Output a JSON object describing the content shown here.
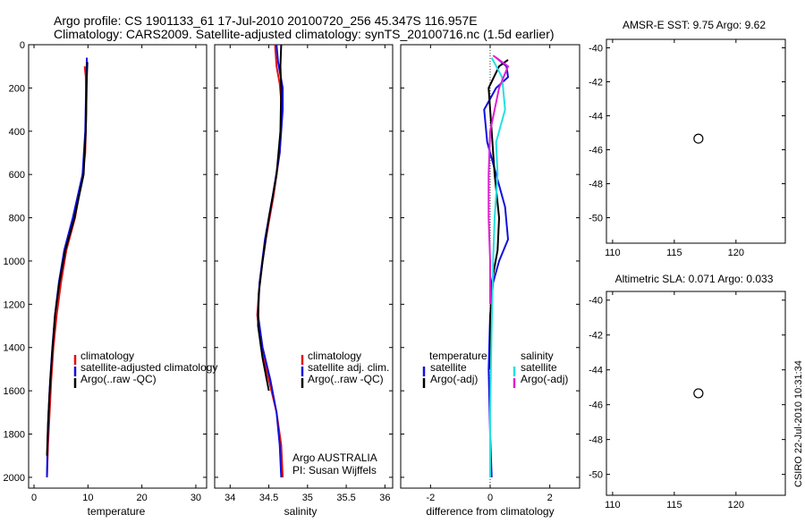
{
  "figure": {
    "title_line1": "Argo profile: CS 1901133_61 17-Jul-2010 20100720_256 45.347S 116.957E",
    "title_line2": "Climatology: CARS2009. Satellite-adjusted climatology: synTS_20100716.nc (1.5d earlier)",
    "footer_org": "Argo AUSTRALIA",
    "footer_pi": "PI: Susan Wijffels",
    "timestamp": "CSIRO 22-Jul-2010 10:31:34"
  },
  "colors": {
    "climatology": "#e01010",
    "satellite": "#1010dd",
    "argo": "#000000",
    "salinity_satellite": "#22e0e0",
    "salinity_argo": "#e020d0"
  },
  "chart_data": [
    {
      "type": "line",
      "name": "temperature",
      "xlabel": "temperature",
      "xlim": [
        -1,
        32
      ],
      "ylim": [
        2050,
        0
      ],
      "xticks": [
        0,
        10,
        20,
        30
      ],
      "yticks": [
        0,
        200,
        400,
        600,
        800,
        1000,
        1200,
        1400,
        1600,
        1800,
        2000
      ],
      "legend": [
        "climatology",
        "satellite-adjusted climatology",
        "Argo(..raw -QC)"
      ],
      "series": [
        {
          "name": "climatology",
          "color": "#e01010",
          "x": [
            9.4,
            9.6,
            9.7,
            9.5,
            9.0,
            7.6,
            6.0,
            5.0,
            4.2,
            3.6,
            3.2,
            2.9,
            2.6,
            2.4
          ],
          "y": [
            100,
            150,
            300,
            500,
            600,
            800,
            950,
            1100,
            1250,
            1400,
            1550,
            1700,
            1850,
            2000
          ]
        },
        {
          "name": "satellite-adjusted climatology",
          "color": "#1010dd",
          "x": [
            9.8,
            9.7,
            9.5,
            9.0,
            7.2,
            5.6,
            4.6,
            3.9,
            3.4,
            3.0,
            2.7,
            2.5,
            2.4
          ],
          "y": [
            60,
            150,
            400,
            600,
            800,
            950,
            1100,
            1250,
            1400,
            1550,
            1700,
            1850,
            2000
          ]
        },
        {
          "name": "Argo(..raw -QC)",
          "color": "#000000",
          "x": [
            9.9,
            9.8,
            9.6,
            9.2,
            7.5,
            5.8,
            4.7,
            3.9,
            3.3,
            2.9,
            2.6,
            2.4
          ],
          "y": [
            80,
            150,
            400,
            600,
            800,
            950,
            1100,
            1250,
            1450,
            1600,
            1750,
            1900
          ]
        }
      ]
    },
    {
      "type": "line",
      "name": "salinity",
      "xlabel": "salinity",
      "xlim": [
        33.8,
        36.1
      ],
      "ylim": [
        2050,
        0
      ],
      "xticks": [
        34,
        34.5,
        35,
        35.5,
        36
      ],
      "xtick_labels": [
        "34",
        "34.5",
        "35",
        "35.5",
        "36"
      ],
      "yticks": [
        0,
        200,
        400,
        600,
        800,
        1000,
        1200,
        1400,
        1600,
        1800,
        2000
      ],
      "legend": [
        "climatology",
        "satellite adj. clim.",
        "Argo(..raw -QC)"
      ],
      "series": [
        {
          "name": "climatology",
          "color": "#e01010",
          "x": [
            34.58,
            34.6,
            34.64,
            34.67,
            34.64,
            34.56,
            34.46,
            34.38,
            34.35,
            34.4,
            34.5,
            34.6,
            34.66,
            34.68
          ],
          "y": [
            0,
            100,
            180,
            300,
            500,
            700,
            900,
            1100,
            1250,
            1400,
            1550,
            1700,
            1850,
            2000
          ]
        },
        {
          "name": "satellite adj. clim.",
          "color": "#1010dd",
          "x": [
            34.6,
            34.62,
            34.68,
            34.68,
            34.64,
            34.55,
            34.45,
            34.38,
            34.36,
            34.42,
            34.52,
            34.6,
            34.64,
            34.66
          ],
          "y": [
            0,
            80,
            200,
            300,
            500,
            700,
            900,
            1100,
            1250,
            1400,
            1550,
            1700,
            1850,
            2000
          ]
        },
        {
          "name": "Argo(..raw -QC)",
          "color": "#000000",
          "x": [
            34.66,
            34.65,
            34.66,
            34.65,
            34.6,
            34.5,
            34.42,
            34.37,
            34.36,
            34.42,
            34.5
          ],
          "y": [
            0,
            100,
            200,
            400,
            600,
            800,
            1000,
            1150,
            1300,
            1450,
            1600
          ]
        }
      ]
    },
    {
      "type": "line",
      "name": "difference",
      "xlabel": "difference from climatology",
      "xlim": [
        -3,
        3
      ],
      "ylim": [
        2050,
        0
      ],
      "xticks": [
        -2,
        0,
        2
      ],
      "yticks": [
        0,
        200,
        400,
        600,
        800,
        1000,
        1200,
        1400,
        1600,
        1800,
        2000
      ],
      "legend_left": [
        "temperature",
        "satellite",
        "Argo(-adj)"
      ],
      "legend_right": [
        "salinity",
        "satellite",
        "Argo(-adj)"
      ],
      "series": [
        {
          "name": "temperature satellite",
          "color": "#1010dd",
          "x": [
            0.2,
            0.55,
            0.6,
            0.2,
            -0.2,
            -0.1,
            0.2,
            0.5,
            0.6,
            0.3,
            0.1,
            0.0,
            -0.05,
            0.0,
            0.05
          ],
          "y": [
            60,
            100,
            150,
            200,
            300,
            450,
            600,
            750,
            900,
            1000,
            1100,
            1250,
            1500,
            1800,
            2000
          ]
        },
        {
          "name": "temperature Argo(-adj)",
          "color": "#000000",
          "x": [
            0.6,
            0.3,
            -0.05,
            0.05,
            0.15,
            0.3,
            0.25,
            0.05,
            0.0,
            0.0
          ],
          "y": [
            70,
            100,
            200,
            400,
            600,
            800,
            950,
            1100,
            1300,
            1500
          ]
        },
        {
          "name": "salinity satellite",
          "color": "#22e0e0",
          "x": [
            0.05,
            0.4,
            0.5,
            0.2,
            0.25,
            0.15,
            0.1,
            0.05,
            0.0,
            0.0
          ],
          "y": [
            60,
            150,
            300,
            450,
            600,
            800,
            1000,
            1300,
            1700,
            2000
          ]
        },
        {
          "name": "salinity Argo(-adj)",
          "color": "#e020d0",
          "x": [
            0.1,
            0.6,
            0.3,
            0.0,
            -0.05,
            -0.05,
            0.0,
            0.0
          ],
          "y": [
            50,
            100,
            200,
            400,
            600,
            800,
            1000,
            1200
          ]
        }
      ]
    },
    {
      "type": "heatmap",
      "name": "AMSR-E SST",
      "title": "AMSR-E SST: 9.75 Argo: 9.62",
      "xlim": [
        109.5,
        124
      ],
      "ylim": [
        -51.5,
        -39.5
      ],
      "xticks": [
        110,
        115,
        120
      ],
      "yticks": [
        -40,
        -42,
        -44,
        -46,
        -48,
        -50
      ],
      "marker": {
        "lon": 116.957,
        "lat": -45.347
      }
    },
    {
      "type": "heatmap",
      "name": "Altimetric SLA",
      "title": "Altimetric SLA: 0.071 Argo: 0.033",
      "xlim": [
        109.5,
        124
      ],
      "ylim": [
        -51.2,
        -39.5
      ],
      "xticks": [
        110,
        115,
        120
      ],
      "yticks": [
        -40,
        -42,
        -44,
        -46,
        -48,
        -50
      ],
      "marker": {
        "lon": 116.957,
        "lat": -45.347
      }
    }
  ]
}
